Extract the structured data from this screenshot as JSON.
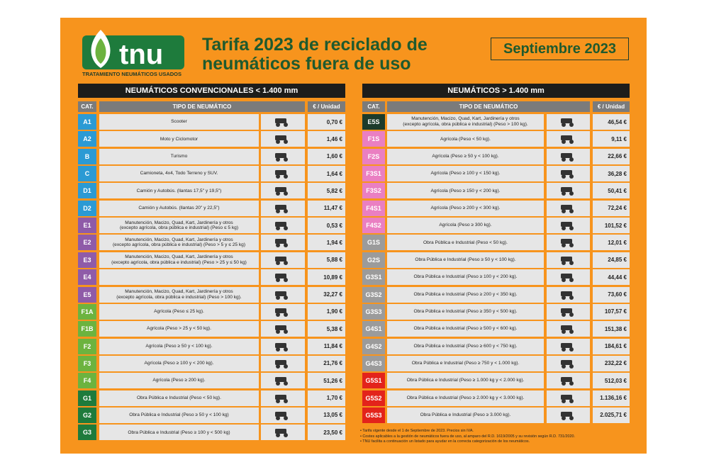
{
  "header": {
    "logo": "tnu",
    "logo_subtitle": "TRATAMIENTO NEUMÁTICOS USADOS",
    "title_lines": [
      "Tarifa 2023 de reciclado de",
      "neumáticos fuera de uso"
    ],
    "date": "Septiembre 2023"
  },
  "tables": [
    {
      "title": "NEUMÁTICOS CONVENCIONALES < 1.400 mm",
      "columns": [
        "CAT.",
        "TIPO DE NEUMÁTICO",
        "€ / Unidad"
      ],
      "rows": [
        {
          "cat": "A1",
          "color": "#2b9ad4",
          "desc": [
            "Scooter"
          ],
          "price": "0,70 €"
        },
        {
          "cat": "A2",
          "color": "#2b9ad4",
          "desc": [
            "Moto y Ciclomotor"
          ],
          "price": "1,46 €"
        },
        {
          "cat": "B",
          "color": "#2b9ad4",
          "desc": [
            "Turismo"
          ],
          "price": "1,60 €"
        },
        {
          "cat": "C",
          "color": "#2b9ad4",
          "desc": [
            "Camioneta, 4x4, Todo Terreno y SUV."
          ],
          "price": "1,64 €"
        },
        {
          "cat": "D1",
          "color": "#2b9ad4",
          "desc": [
            "Camión y Autobús. (llantas 17,5\" y 19,5\")"
          ],
          "price": "5,82 €"
        },
        {
          "cat": "D2",
          "color": "#2b9ad4",
          "desc": [
            "Camión y Autobús. (llantas 20\" y 22,5\")"
          ],
          "price": "11,47 €"
        },
        {
          "cat": "E1",
          "color": "#8f5ba8",
          "desc": [
            "Manutención, Macizo, Quad, Kart, Jardinería y otros",
            "(excepto agrícola, obra pública e industrial)  (Peso ≤ 5 kg)"
          ],
          "price": "0,53 €"
        },
        {
          "cat": "E2",
          "color": "#8f5ba8",
          "desc": [
            "Manutención, Macizo, Quad, Kart, Jardinería y otros",
            "(excepto agrícola, obra pública e industrial) (Peso > 5 y ≤ 25 kg)"
          ],
          "price": "1,94 €"
        },
        {
          "cat": "E3",
          "color": "#8f5ba8",
          "desc": [
            "Manutención, Macizo, Quad, Kart, Jardinería y otros",
            "(excepto agrícola, obra pública e industrial) (Peso > 25 y ≤ 50 kg)"
          ],
          "price": "5,88 €"
        },
        {
          "cat": "E4",
          "color": "#8f5ba8",
          "desc": [],
          "price": "10,89 €"
        },
        {
          "cat": "E5",
          "color": "#8f5ba8",
          "desc": [
            "Manutención, Macizo, Quad, Kart, Jardinería y otros",
            "(excepto agrícola, obra pública e industrial) (Peso > 100 kg)."
          ],
          "price": "32,27 €"
        },
        {
          "cat": "F1A",
          "color": "#6cb33f",
          "desc": [
            "Agrícola (Peso ≤ 25 kg)."
          ],
          "price": "1,90 €"
        },
        {
          "cat": "F1B",
          "color": "#6cb33f",
          "desc": [
            "Agrícola (Peso > 25 y < 50 kg)."
          ],
          "price": "5,38 €"
        },
        {
          "cat": "F2",
          "color": "#6cb33f",
          "desc": [
            "Agrícola (Peso ≥ 50 y < 100 kg)."
          ],
          "price": "11,84 €"
        },
        {
          "cat": "F3",
          "color": "#6cb33f",
          "desc": [
            "Agrícola (Peso ≥ 100 y < 200 kg)."
          ],
          "price": "21,76 €"
        },
        {
          "cat": "F4",
          "color": "#6cb33f",
          "desc": [
            "Agrícola (Peso ≥ 200 kg)."
          ],
          "price": "51,26 €"
        },
        {
          "cat": "G1",
          "color": "#1e7b3c",
          "desc": [
            "Obra Pública e Industrial (Peso < 50 kg)."
          ],
          "price": "1,70 €"
        },
        {
          "cat": "G2",
          "color": "#1e7b3c",
          "desc": [
            "Obra Pública e Industrial (Peso ≥ 50 y < 100 kg)"
          ],
          "price": "13,05 €"
        },
        {
          "cat": "G3",
          "color": "#1e7b3c",
          "desc": [
            "Obra Pública e Industrial (Peso ≥ 100 y < 500 kg)"
          ],
          "price": "23,50 €"
        }
      ]
    },
    {
      "title": "NEUMÁTICOS > 1.400 mm",
      "columns": [
        "CAT.",
        "TIPO DE NEUMÁTICO",
        "€ / Unidad"
      ],
      "rows": [
        {
          "cat": "E5S",
          "color": "#1d3b2b",
          "desc": [
            "Manutención, Macizo, Quad, Kart, Jardinería y otros",
            "(excepto agrícola, obra pública e industrial) (Peso > 100 kg)."
          ],
          "price": "46,54 €"
        },
        {
          "cat": "F1S",
          "color": "#ea7fc2",
          "desc": [
            "Agrícola (Peso < 50 kg)."
          ],
          "price": "9,11 €"
        },
        {
          "cat": "F2S",
          "color": "#ea7fc2",
          "desc": [
            "Agrícola (Peso ≥ 50 y < 100 kg)."
          ],
          "price": "22,66 €"
        },
        {
          "cat": "F3S1",
          "color": "#ea7fc2",
          "desc": [
            "Agrícola (Peso ≥ 100 y < 150 kg)."
          ],
          "price": "36,28 €"
        },
        {
          "cat": "F3S2",
          "color": "#ea7fc2",
          "desc": [
            "Agrícola (Peso ≥ 150 y < 200 kg)."
          ],
          "price": "50,41 €"
        },
        {
          "cat": "F4S1",
          "color": "#ea7fc2",
          "desc": [
            "Agrícola (Peso ≥ 200 y < 300 kg)."
          ],
          "price": "72,24 €"
        },
        {
          "cat": "F4S2",
          "color": "#ea7fc2",
          "desc": [
            "Agrícola (Peso ≥ 300 kg)."
          ],
          "price": "101,52 €"
        },
        {
          "cat": "G1S",
          "color": "#9b9b9b",
          "desc": [
            "Obra Pública e Industrial (Peso < 50 kg)."
          ],
          "price": "12,01 €"
        },
        {
          "cat": "G2S",
          "color": "#9b9b9b",
          "desc": [
            "Obra Pública e Industrial (Peso ≥ 50 y < 100 kg)."
          ],
          "price": "24,85 €"
        },
        {
          "cat": "G3S1",
          "color": "#9b9b9b",
          "desc": [
            "Obra Pública e Industrial (Peso ≥ 100 y < 200 kg)."
          ],
          "price": "44,44 €"
        },
        {
          "cat": "G3S2",
          "color": "#9b9b9b",
          "desc": [
            "Obra Pública e Industrial (Peso ≥ 200 y < 350 kg)."
          ],
          "price": "73,60 €"
        },
        {
          "cat": "G3S3",
          "color": "#9b9b9b",
          "desc": [
            "Obra Pública e Industrial (Peso ≥ 350 y < 500 kg)."
          ],
          "price": "107,57 €"
        },
        {
          "cat": "G4S1",
          "color": "#9b9b9b",
          "desc": [
            "Obra Pública e Industrial (Peso ≥ 500 y < 600 kg)."
          ],
          "price": "151,38 €"
        },
        {
          "cat": "G4S2",
          "color": "#9b9b9b",
          "desc": [
            "Obra Pública e Industrial (Peso ≥ 600 y < 750 kg)."
          ],
          "price": "184,61 €"
        },
        {
          "cat": "G4S3",
          "color": "#9b9b9b",
          "desc": [
            "Obra Pública e Industrial (Peso ≥ 750 y < 1.000 kg)."
          ],
          "price": "232,22 €"
        },
        {
          "cat": "G5S1",
          "color": "#e3231b",
          "desc": [
            "Obra Pública e Industrial (Peso ≥ 1.000 kg y < 2.000 kg)."
          ],
          "price": "512,03 €"
        },
        {
          "cat": "G5S2",
          "color": "#e3231b",
          "desc": [
            "Obra Pública e Industrial (Peso ≥ 2.000 kg y < 3.000 kg)."
          ],
          "price": "1.136,16 €"
        },
        {
          "cat": "G5S3",
          "color": "#e3231b",
          "desc": [
            "Obra Pública e Industrial (Peso ≥ 3.000 kg)."
          ],
          "price": "2.025,71 €"
        }
      ]
    }
  ],
  "footnotes": [
    "• Tarifa vigente desde el 1 de Septiembre de 2023. Precios sin IVA.",
    "• Costes aplicables a la gestión de neumáticos fuera de uso, al amparo del R.D. 1619/2005 y su revisión según R.D. 731/2020.",
    "• TNU facilita a continuación un listado para ayudar en la correcta categorización de los neumáticos."
  ]
}
